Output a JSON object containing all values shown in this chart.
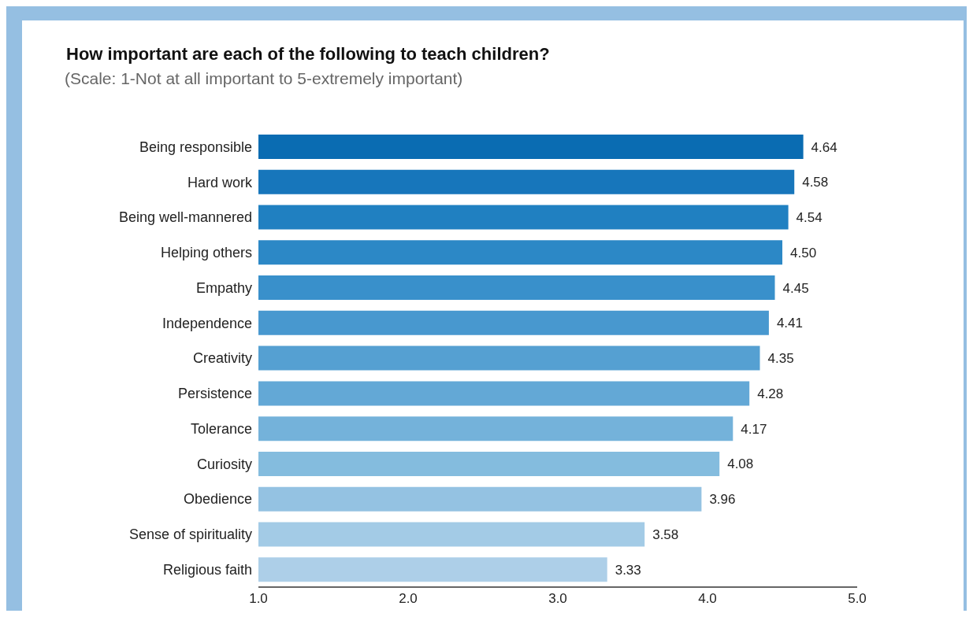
{
  "chart_data": {
    "type": "bar",
    "orientation": "horizontal",
    "title": "How important are each of the following to teach children?",
    "subtitle": "(Scale: 1-Not at all important to 5-extremely important)",
    "categories": [
      "Being responsible",
      "Hard work",
      "Being well-mannered",
      "Helping others",
      "Empathy",
      "Independence",
      "Creativity",
      "Persistence",
      "Tolerance",
      "Curiosity",
      "Obedience",
      "Sense of spirituality",
      "Religious faith"
    ],
    "values": [
      4.64,
      4.58,
      4.54,
      4.5,
      4.45,
      4.41,
      4.35,
      4.28,
      4.17,
      4.08,
      3.96,
      3.58,
      3.33
    ],
    "value_labels": [
      "4.64",
      "4.58",
      "4.54",
      "4.50",
      "4.45",
      "4.41",
      "4.35",
      "4.28",
      "4.17",
      "4.08",
      "3.96",
      "3.58",
      "3.33"
    ],
    "colors": [
      "#0a6cb2",
      "#1776bb",
      "#2080c1",
      "#2c88c6",
      "#3990cb",
      "#4898cf",
      "#55a0d2",
      "#63a8d6",
      "#74b2da",
      "#84bcde",
      "#94c2e2",
      "#a3cbe6",
      "#adcfe8"
    ],
    "xlim": [
      1,
      5
    ],
    "xticks": [
      {
        "value": 1,
        "label": "1.0"
      },
      {
        "value": 2,
        "label": "2.0"
      },
      {
        "value": 3,
        "label": "3.0"
      },
      {
        "value": 4,
        "label": "4.0"
      },
      {
        "value": 5,
        "label": "5.0"
      }
    ],
    "grid": false
  }
}
